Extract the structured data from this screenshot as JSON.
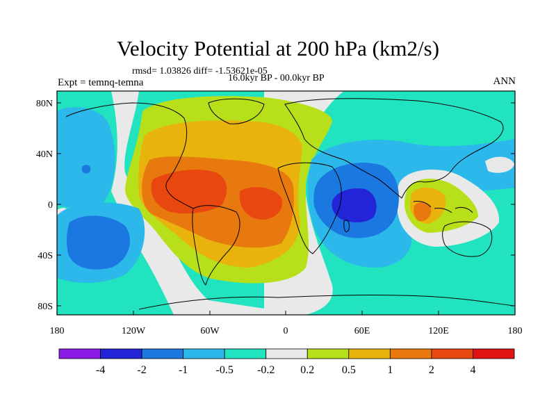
{
  "header": {
    "title": "Velocity Potential at 200 hPa (km2/s)",
    "stats": "rmsd= 1.03826 diff= -1.53621e-05",
    "period": "16.0kyr BP - 00.0kyr BP",
    "experiment": "Expt = temnq-temna",
    "season": "ANN"
  },
  "map": {
    "lat_labels": [
      "80N",
      "40N",
      "0",
      "40S",
      "80S"
    ],
    "lon_labels": [
      "180",
      "120W",
      "60W",
      "0",
      "60E",
      "120E",
      "180"
    ]
  },
  "colorbar": {
    "labels": [
      "-4",
      "-2",
      "-1",
      "-0.5",
      "-0.2",
      "0.2",
      "0.5",
      "1",
      "2",
      "4"
    ],
    "colors": [
      "#8a1ce6",
      "#2323d8",
      "#1a78e0",
      "#2cb8ea",
      "#22e3c0",
      "#e9e9e9",
      "#b7e01a",
      "#e8b30c",
      "#e8790f",
      "#e8470f",
      "#e11212"
    ]
  }
}
